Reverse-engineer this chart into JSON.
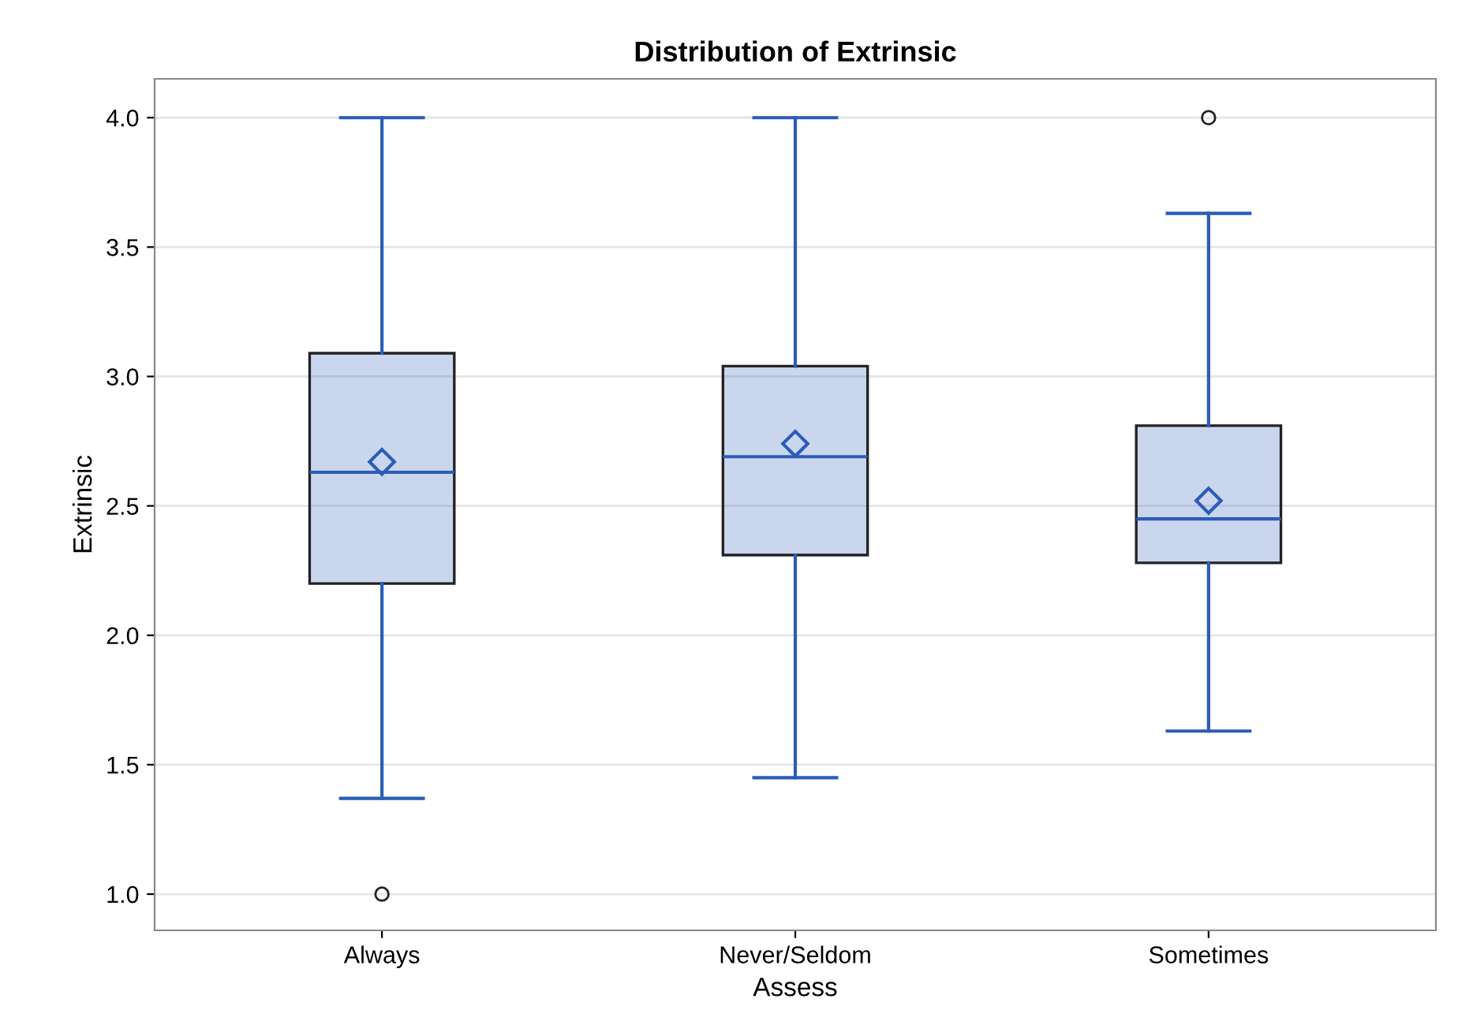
{
  "chart_data": {
    "type": "box",
    "title": "Distribution of Extrinsic",
    "xlabel": "Assess",
    "ylabel": "Extrinsic",
    "categories": [
      "Always",
      "Never/Seldom",
      "Sometimes"
    ],
    "boxes": [
      {
        "low": 1.37,
        "q1": 2.2,
        "median": 2.63,
        "q3": 3.09,
        "high": 4.0,
        "mean": 2.67,
        "outliers": [
          1.0
        ]
      },
      {
        "low": 1.45,
        "q1": 2.31,
        "median": 2.69,
        "q3": 3.04,
        "high": 4.0,
        "mean": 2.74
      },
      {
        "low": 1.63,
        "q1": 2.28,
        "median": 2.45,
        "q3": 2.81,
        "high": 3.63,
        "mean": 2.52,
        "outliers": [
          4.0
        ]
      }
    ],
    "color": "#2b5cb8",
    "ylim": [
      0.86,
      4.15
    ],
    "yticks": [
      {
        "value": 1.0,
        "label": "1.0"
      },
      {
        "value": 1.5,
        "label": "1.5"
      },
      {
        "value": 2.0,
        "label": "2.0"
      },
      {
        "value": 2.5,
        "label": "2.5"
      },
      {
        "value": 3.0,
        "label": "3.0"
      },
      {
        "value": 3.5,
        "label": "3.5"
      },
      {
        "value": 4.0,
        "label": "4.0"
      }
    ],
    "grid": "y",
    "marker": "diamond"
  }
}
